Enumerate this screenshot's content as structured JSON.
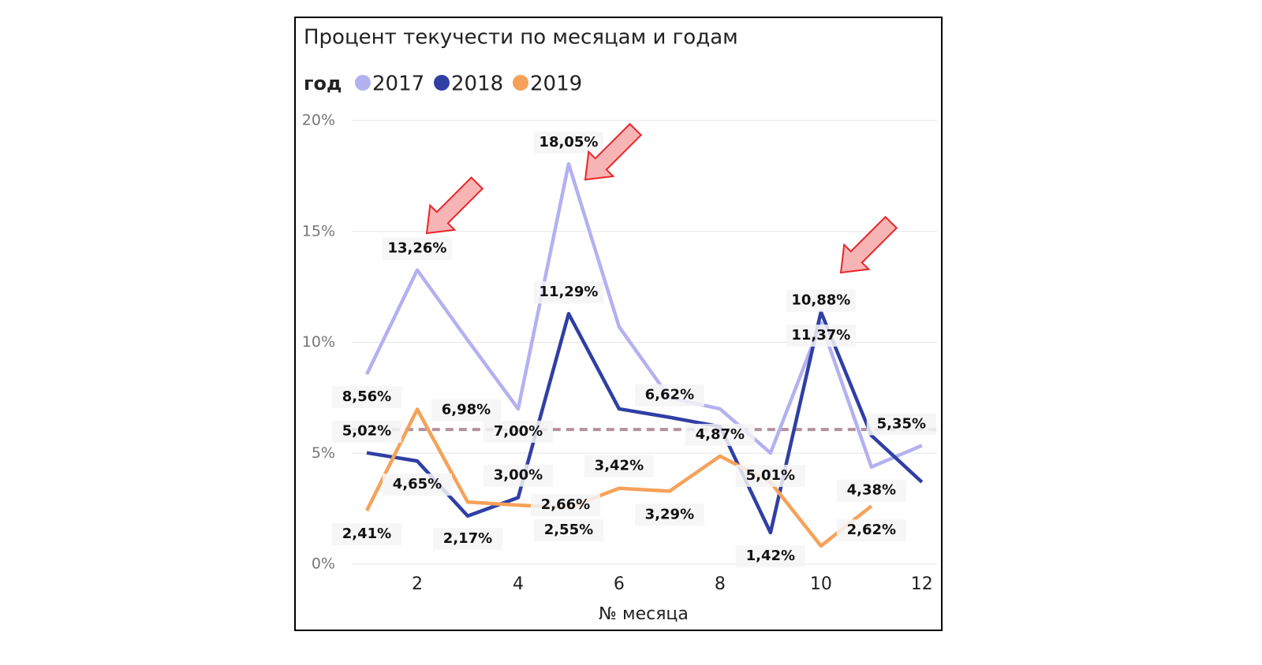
{
  "chart_data": {
    "type": "line",
    "title": "Процент текучести по месяцам и годам",
    "legend_title": "год",
    "x_label": "№ месяца",
    "x": [
      1,
      2,
      3,
      4,
      5,
      6,
      7,
      8,
      9,
      10,
      11,
      12
    ],
    "series": [
      {
        "name": "2017",
        "color": "#b4b1f1",
        "values": [
          8.56,
          13.26,
          10.1,
          7.0,
          18.05,
          10.7,
          7.5,
          7.0,
          5.01,
          10.88,
          4.38,
          5.35
        ],
        "value_labels": [
          "8,56%",
          "13,26%",
          null,
          "7,00%",
          "18,05%",
          null,
          null,
          null,
          "5,01%",
          "10,88%",
          "4,38%",
          "5,35%"
        ]
      },
      {
        "name": "2018",
        "color": "#2f3fa4",
        "values": [
          5.02,
          4.65,
          2.17,
          3.0,
          11.29,
          7.0,
          6.62,
          6.2,
          1.42,
          11.37,
          5.8,
          3.7
        ],
        "value_labels": [
          "5,02%",
          "4,65%",
          "2,17%",
          "3,00%",
          "11,29%",
          null,
          "6,62%",
          null,
          "1,42%",
          "11,37%",
          null,
          null
        ]
      },
      {
        "name": "2019",
        "color": "#f6a159",
        "values": [
          2.41,
          6.98,
          2.8,
          2.66,
          2.55,
          3.42,
          3.29,
          4.87,
          3.7,
          0.82,
          2.62,
          null
        ],
        "value_labels": [
          "2,41%",
          "6,98%",
          null,
          "2,66%",
          "2,55%",
          "3,42%",
          "3,29%",
          "4,87%",
          null,
          null,
          "2,62%",
          null
        ]
      }
    ],
    "average_line": {
      "value": 6.07,
      "color": "#b3919f"
    },
    "xlim": [
      0.7,
      12.3
    ],
    "xticks": [
      2,
      4,
      6,
      8,
      10,
      12
    ],
    "ylim": [
      0,
      20
    ],
    "yticks": [
      {
        "value": 0,
        "label": "0%"
      },
      {
        "value": 5,
        "label": "5%"
      },
      {
        "value": 10,
        "label": "10%"
      },
      {
        "value": 15,
        "label": "15%"
      },
      {
        "value": 20,
        "label": "20%"
      }
    ],
    "grid": true
  }
}
